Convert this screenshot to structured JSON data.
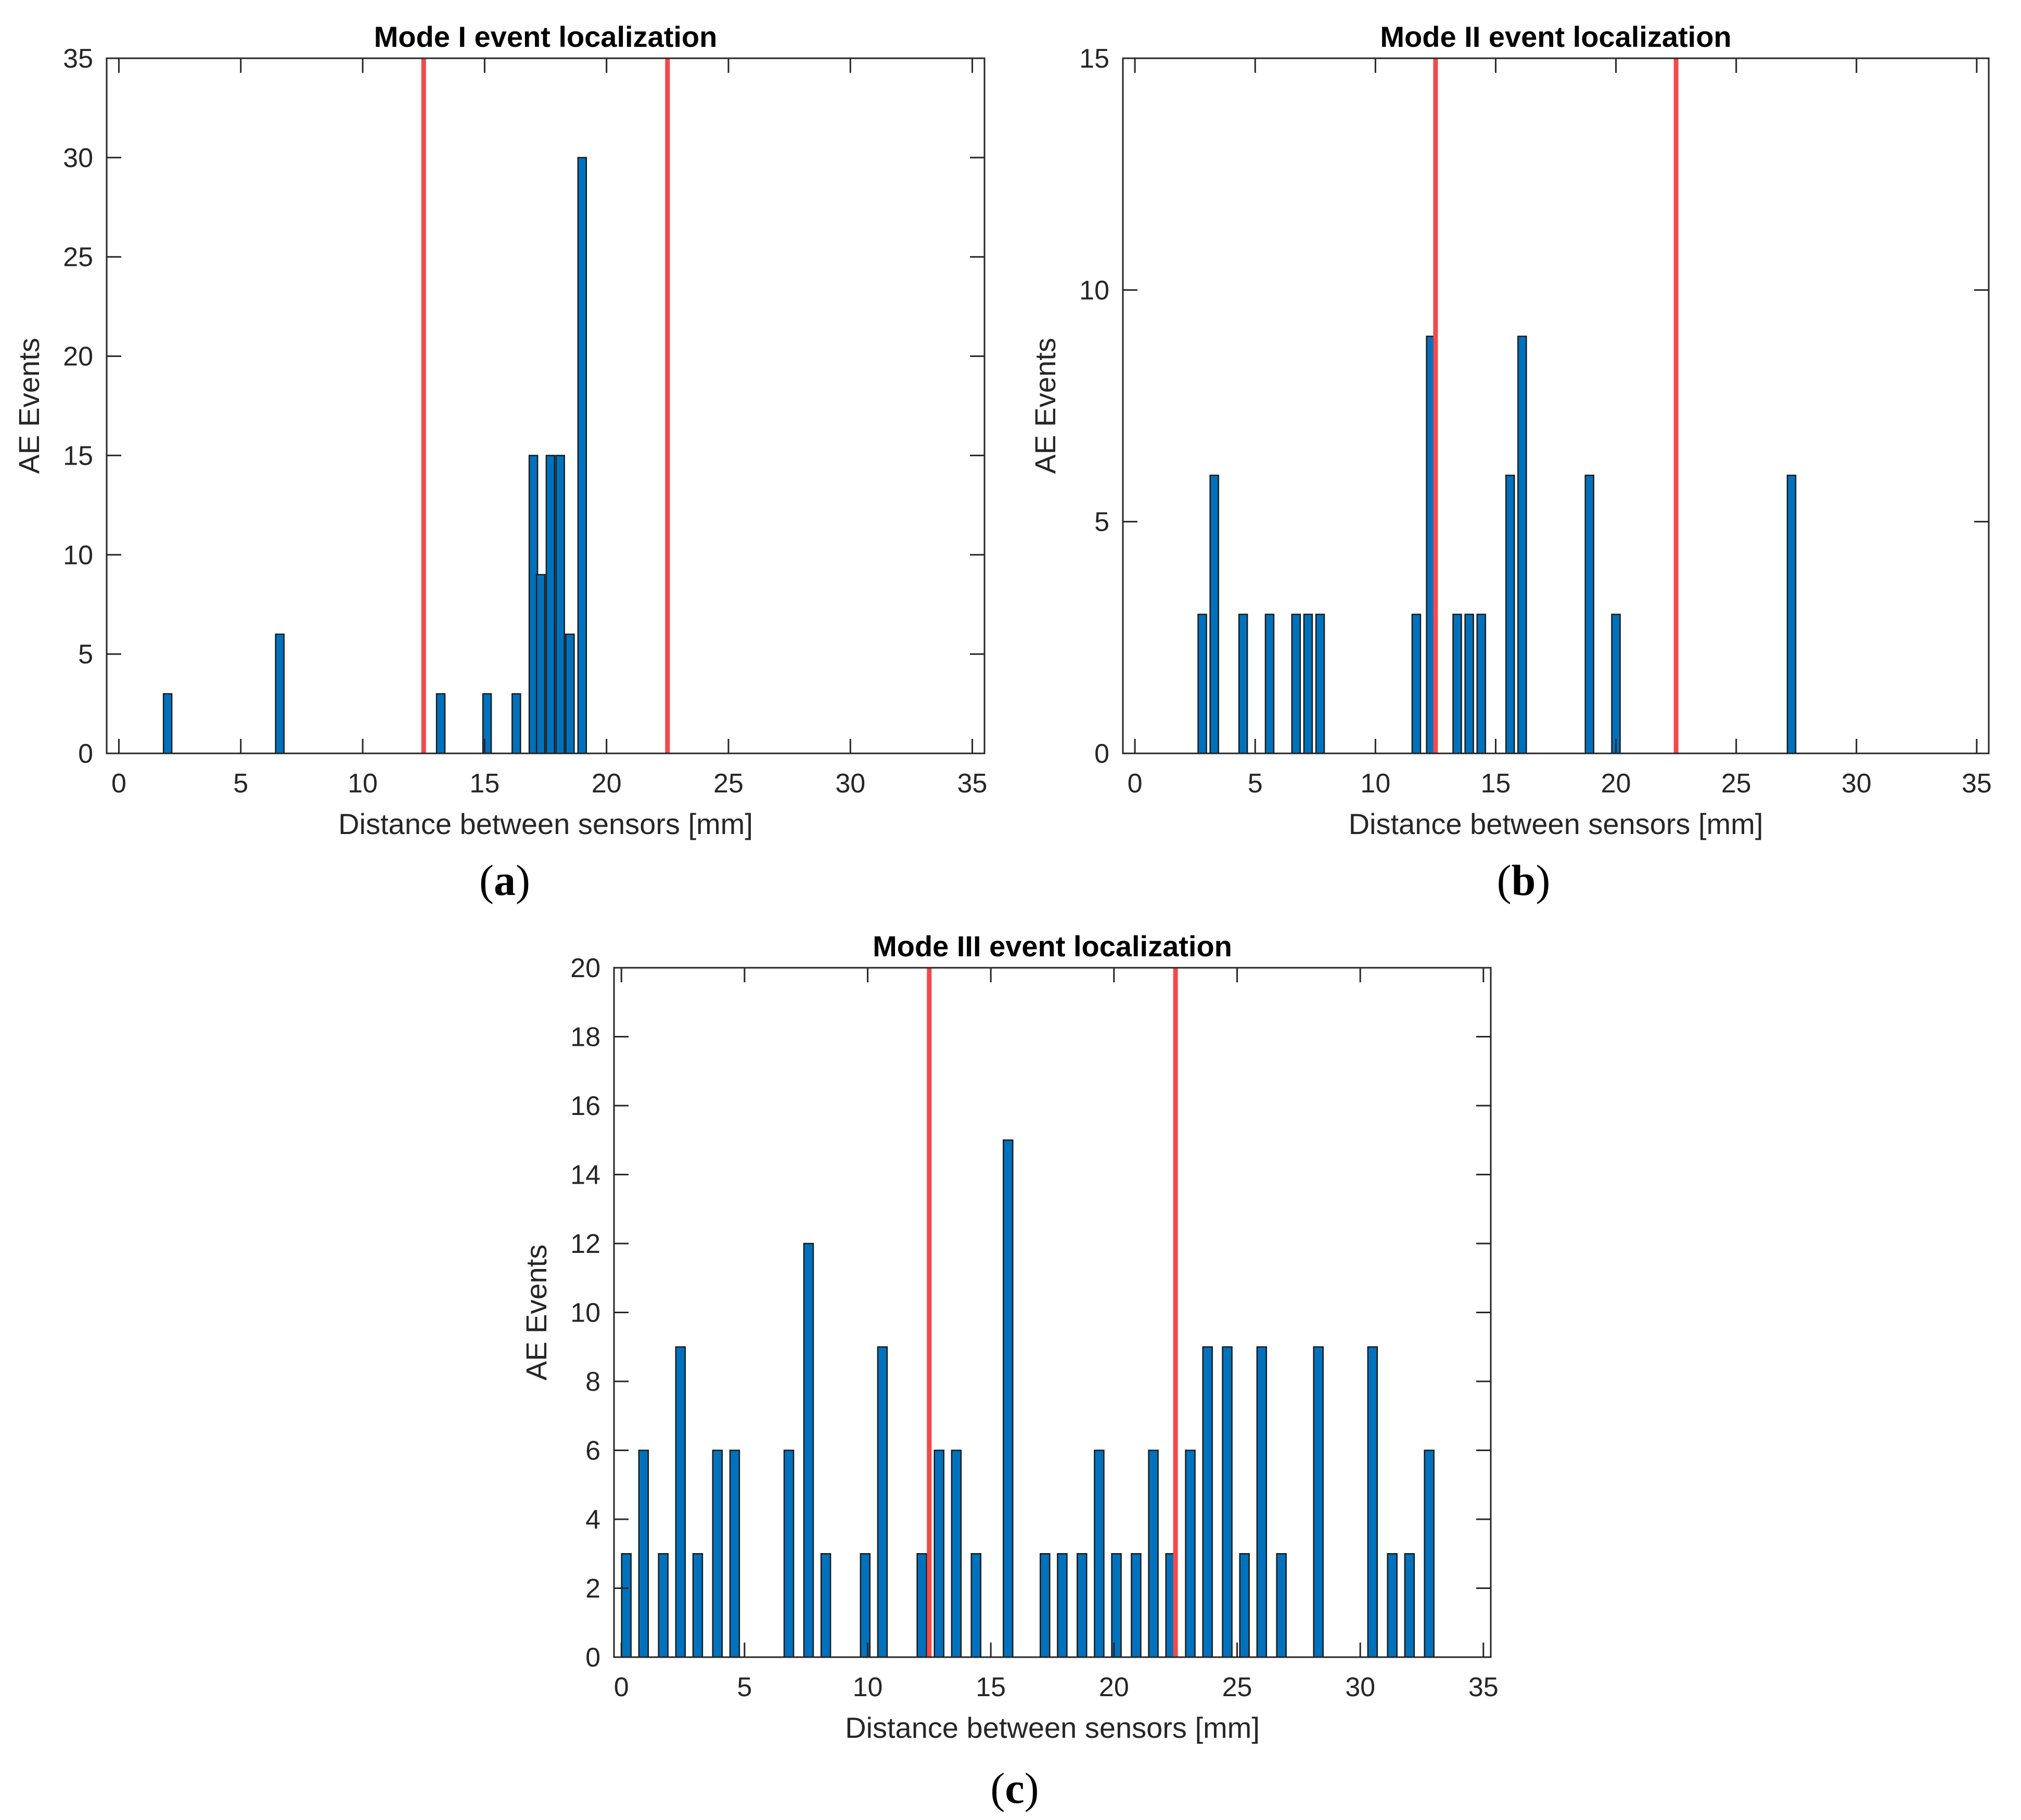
{
  "colors": {
    "bar_fill": "#0072bd",
    "bar_edge": "#1a1a1a",
    "marker_line": "#f24a4a",
    "axis": "#262626",
    "title": "#000000"
  },
  "chart_data": [
    {
      "panel": "a",
      "caption_letter": "a",
      "caption_open": "(",
      "caption_close": ")",
      "type": "bar",
      "title": "Mode I event localization",
      "xlabel": "Distance between sensors [mm]",
      "ylabel": "AE Events",
      "xlim": [
        -0.5,
        35.5
      ],
      "ylim": [
        0,
        35
      ],
      "xticks": [
        0,
        5,
        10,
        15,
        20,
        25,
        30,
        35
      ],
      "yticks": [
        0,
        5,
        10,
        15,
        20,
        25,
        30,
        35
      ],
      "vertical_lines": [
        12.5,
        22.5
      ],
      "x": [
        2.0,
        6.6,
        13.2,
        15.1,
        16.3,
        17.0,
        17.3,
        17.7,
        18.1,
        18.5,
        19.0
      ],
      "values": [
        3,
        6,
        3,
        3,
        3,
        15,
        9,
        15,
        15,
        6,
        30
      ]
    },
    {
      "panel": "b",
      "caption_letter": "b",
      "caption_open": "(",
      "caption_close": ")",
      "type": "bar",
      "title": "Mode II event localization",
      "xlabel": "Distance between sensors [mm]",
      "ylabel": "AE Events",
      "xlim": [
        -0.5,
        35.5
      ],
      "ylim": [
        0,
        15
      ],
      "xticks": [
        0,
        5,
        10,
        15,
        20,
        25,
        30,
        35
      ],
      "yticks": [
        0,
        5,
        10,
        15
      ],
      "vertical_lines": [
        12.5,
        22.5
      ],
      "x": [
        2.8,
        3.3,
        4.5,
        5.6,
        6.7,
        7.2,
        7.7,
        11.7,
        12.3,
        13.4,
        13.9,
        14.4,
        15.6,
        16.1,
        18.9,
        20.0,
        27.3
      ],
      "values": [
        3,
        6,
        3,
        3,
        3,
        3,
        3,
        3,
        9,
        3,
        3,
        3,
        6,
        9,
        6,
        3,
        6
      ]
    },
    {
      "panel": "c",
      "caption_letter": "c",
      "caption_open": "(",
      "caption_close": ")",
      "type": "bar",
      "title": "Mode III event localization",
      "xlabel": "Distance between sensors [mm]",
      "ylabel": "AE Events",
      "xlim": [
        -0.3,
        35.3
      ],
      "ylim": [
        0,
        20
      ],
      "xticks": [
        0,
        5,
        10,
        15,
        20,
        25,
        30,
        35
      ],
      "yticks": [
        0,
        2,
        4,
        6,
        8,
        10,
        12,
        14,
        16,
        18,
        20
      ],
      "vertical_lines": [
        12.5,
        22.5
      ],
      "x": [
        0.2,
        0.9,
        1.7,
        2.4,
        3.1,
        3.9,
        4.6,
        6.8,
        7.6,
        8.3,
        9.9,
        10.6,
        12.2,
        12.9,
        13.6,
        14.4,
        15.7,
        17.2,
        17.9,
        18.7,
        19.4,
        20.1,
        20.9,
        21.6,
        22.3,
        23.1,
        23.8,
        24.6,
        25.3,
        26.0,
        26.8,
        28.3,
        30.5,
        31.3,
        32.0,
        32.8
      ],
      "values": [
        3,
        6,
        3,
        9,
        3,
        6,
        6,
        6,
        12,
        3,
        3,
        9,
        3,
        6,
        6,
        3,
        15,
        3,
        3,
        3,
        6,
        3,
        3,
        6,
        3,
        6,
        9,
        9,
        3,
        9,
        3,
        9,
        9,
        3,
        3,
        6
      ]
    }
  ]
}
